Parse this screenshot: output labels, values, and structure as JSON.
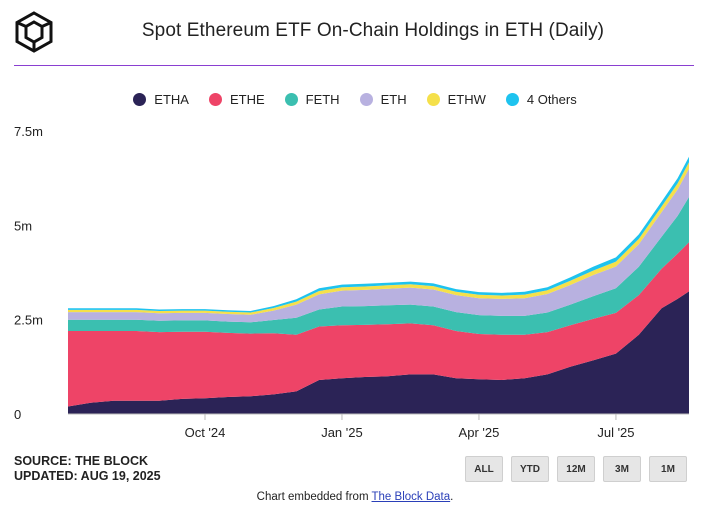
{
  "header": {
    "title": "Spot Ethereum ETF On-Chain Holdings in ETH (Daily)"
  },
  "legend": [
    {
      "label": "ETHA",
      "color": "#2b2356"
    },
    {
      "label": "ETHE",
      "color": "#ee4467"
    },
    {
      "label": "FETH",
      "color": "#3bbfb0"
    },
    {
      "label": "ETH",
      "color": "#b8b1e0"
    },
    {
      "label": "ETHW",
      "color": "#f5e04a"
    },
    {
      "label": "4 Others",
      "color": "#1ec3ef"
    }
  ],
  "footer": {
    "source": "SOURCE: THE BLOCK",
    "updated": "UPDATED: AUG 19, 2025",
    "embed_prefix": "Chart embedded from ",
    "embed_link": "The Block Data",
    "embed_suffix": "."
  },
  "range_buttons": [
    "ALL",
    "YTD",
    "12M",
    "3M",
    "1M"
  ],
  "chart_data": {
    "type": "area",
    "stacked": true,
    "title": "Spot Ethereum ETF On-Chain Holdings in ETH (Daily)",
    "xlabel": "",
    "ylabel": "",
    "ylim": [
      0,
      7500000
    ],
    "y_ticks": [
      {
        "value": 0,
        "label": "0"
      },
      {
        "value": 2500000,
        "label": "2.5m"
      },
      {
        "value": 5000000,
        "label": "5m"
      },
      {
        "value": 7500000,
        "label": "7.5m"
      }
    ],
    "x_range": [
      0,
      13.6
    ],
    "x_ticks": [
      {
        "value": 3.0,
        "label": "Oct '24"
      },
      {
        "value": 6.0,
        "label": "Jan '25"
      },
      {
        "value": 9.0,
        "label": "Apr '25"
      },
      {
        "value": 12.0,
        "label": "Jul '25"
      }
    ],
    "x": [
      0,
      0.5,
      1,
      1.5,
      2,
      2.5,
      3,
      3.5,
      4,
      4.5,
      5,
      5.5,
      6,
      6.5,
      7,
      7.5,
      8,
      8.5,
      9,
      9.5,
      10,
      10.5,
      11,
      11.5,
      12,
      12.5,
      13,
      13.35,
      13.6
    ],
    "series": [
      {
        "name": "ETHA",
        "values": [
          200000,
          300000,
          350000,
          350000,
          350000,
          400000,
          420000,
          450000,
          470000,
          520000,
          600000,
          900000,
          950000,
          980000,
          1000000,
          1050000,
          1050000,
          950000,
          920000,
          900000,
          950000,
          1050000,
          1250000,
          1420000,
          1600000,
          2100000,
          2800000,
          3050000,
          3250000
        ]
      },
      {
        "name": "ETHE",
        "values": [
          2000000,
          1900000,
          1850000,
          1850000,
          1820000,
          1780000,
          1760000,
          1700000,
          1660000,
          1620000,
          1500000,
          1420000,
          1400000,
          1380000,
          1380000,
          1350000,
          1300000,
          1250000,
          1200000,
          1200000,
          1150000,
          1120000,
          1100000,
          1100000,
          1080000,
          1050000,
          1050000,
          1200000,
          1300000
        ]
      },
      {
        "name": "FETH",
        "values": [
          300000,
          300000,
          300000,
          300000,
          300000,
          300000,
          300000,
          300000,
          300000,
          350000,
          450000,
          450000,
          500000,
          500000,
          500000,
          500000,
          500000,
          500000,
          500000,
          500000,
          500000,
          520000,
          550000,
          600000,
          650000,
          750000,
          850000,
          1000000,
          1200000
        ]
      },
      {
        "name": "ETH",
        "values": [
          200000,
          200000,
          200000,
          200000,
          200000,
          200000,
          200000,
          200000,
          200000,
          250000,
          350000,
          400000,
          420000,
          430000,
          440000,
          450000,
          450000,
          450000,
          450000,
          450000,
          470000,
          490000,
          520000,
          560000,
          580000,
          600000,
          650000,
          700000,
          750000
        ]
      },
      {
        "name": "ETHW",
        "values": [
          60000,
          60000,
          60000,
          60000,
          60000,
          60000,
          60000,
          60000,
          60000,
          70000,
          80000,
          90000,
          90000,
          90000,
          90000,
          90000,
          90000,
          90000,
          90000,
          90000,
          95000,
          100000,
          110000,
          120000,
          130000,
          140000,
          150000,
          160000,
          170000
        ]
      },
      {
        "name": "4 Others",
        "values": [
          40000,
          40000,
          40000,
          40000,
          40000,
          40000,
          40000,
          40000,
          40000,
          50000,
          60000,
          70000,
          70000,
          70000,
          70000,
          70000,
          70000,
          70000,
          70000,
          70000,
          75000,
          80000,
          90000,
          100000,
          110000,
          120000,
          130000,
          140000,
          150000
        ]
      }
    ]
  }
}
